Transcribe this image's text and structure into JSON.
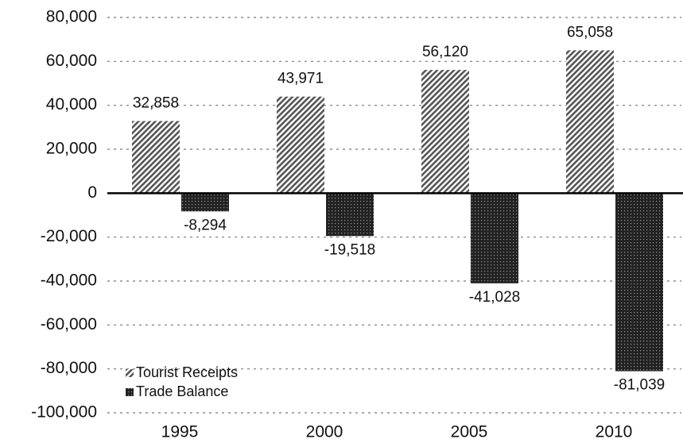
{
  "chart_data": {
    "type": "bar",
    "categories": [
      "1995",
      "2000",
      "2005",
      "2010"
    ],
    "series": [
      {
        "name": "Tourist Receipts",
        "color": "#555555",
        "pattern": "hatch",
        "values": [
          32858,
          43971,
          56120,
          65058
        ],
        "value_labels": [
          "32,858",
          "43,971",
          "56,120",
          "65,058"
        ]
      },
      {
        "name": "Trade Balance",
        "color": "#222222",
        "pattern": "dots",
        "values": [
          -8294,
          -19518,
          -41028,
          -81039
        ],
        "value_labels": [
          "-8,294",
          "-19,518",
          "-41,028",
          "-81,039"
        ]
      }
    ],
    "ylim": [
      -100000,
      80000
    ],
    "yticks": [
      {
        "value": -100000,
        "label": "-100,000"
      },
      {
        "value": -80000,
        "label": "-80,000"
      },
      {
        "value": -60000,
        "label": "-60,000"
      },
      {
        "value": -40000,
        "label": "-40,000"
      },
      {
        "value": -20000,
        "label": "-20,000"
      },
      0,
      {
        "value": 20000,
        "label": "20,000"
      },
      {
        "value": 40000,
        "label": "40,000"
      },
      {
        "value": 60000,
        "label": "60,000"
      },
      {
        "value": 80000,
        "label": "80,000"
      }
    ],
    "grid": true,
    "legend": "lower left"
  }
}
